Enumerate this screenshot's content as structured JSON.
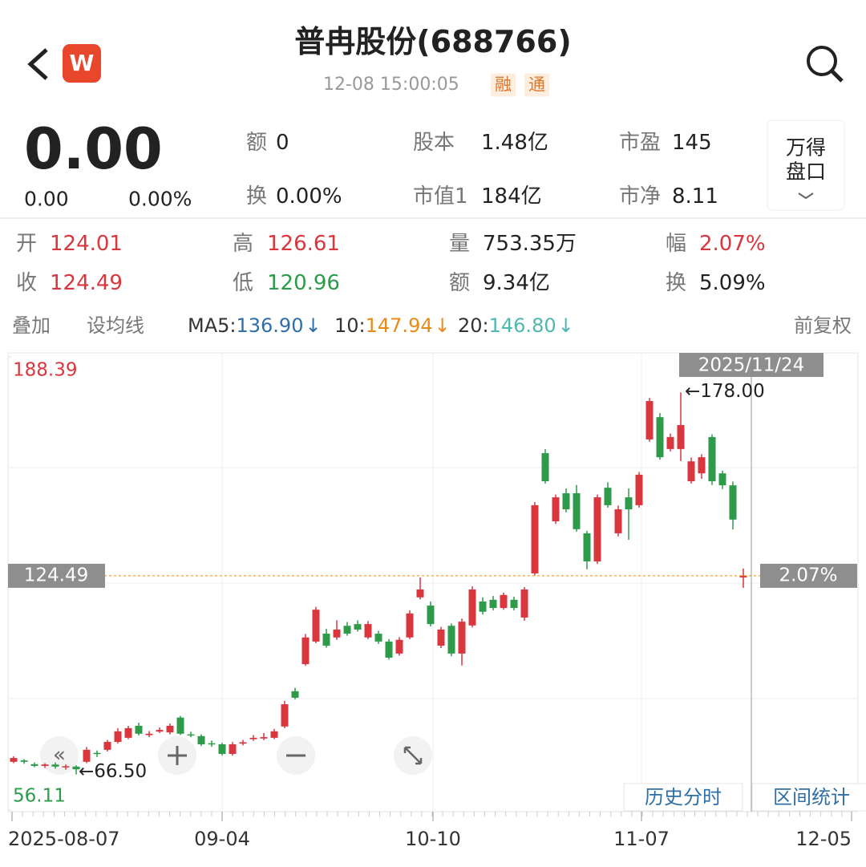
{
  "header": {
    "title": "普冉股份(688766)",
    "time": "12-08 15:00:05",
    "tags": [
      "融",
      "通"
    ]
  },
  "quote": {
    "price": "0.00",
    "change": "0.00",
    "percent": "0.00%"
  },
  "stats": [
    {
      "label": "额",
      "value": "0"
    },
    {
      "label": "股本",
      "value": "1.48亿"
    },
    {
      "label": "市盈",
      "value": "145"
    },
    {
      "label": "换",
      "value": "0.00%"
    },
    {
      "label": "市值1",
      "value": "184亿"
    },
    {
      "label": "市净",
      "value": "8.11"
    }
  ],
  "wind_button": [
    "万得",
    "盘口"
  ],
  "day_stats": [
    {
      "label": "开",
      "value": "124.01"
    },
    {
      "label": "高",
      "value": "126.61"
    },
    {
      "label": "量",
      "value": "753.35万"
    },
    {
      "label": "幅",
      "value": "2.07%"
    },
    {
      "label": "收",
      "value": "124.49"
    },
    {
      "label": "低",
      "value": "120.96"
    },
    {
      "label": "额",
      "value": "9.34亿"
    },
    {
      "label": "换",
      "value": "5.09%"
    }
  ],
  "toolbar": {
    "overlay": "叠加",
    "set_ma": "设均线",
    "ma": [
      {
        "label": "MA5:",
        "value": "136.90",
        "arrow": "↓"
      },
      {
        "label": "10:",
        "value": "147.94",
        "arrow": "↓"
      },
      {
        "label": "20:",
        "value": "146.80",
        "arrow": "↓"
      }
    ],
    "adjust": "前复权"
  },
  "chart_data": {
    "type": "candlestick",
    "ylim": [
      56.11,
      188.39
    ],
    "yticks": [
      188.39,
      56.11
    ],
    "up_color": "#d9363e",
    "down_color": "#2e9b4a",
    "crosshair_date": "2025/11/24",
    "high_label": "←178.00",
    "low_label": "←66.50",
    "last_price": {
      "value": 124.49,
      "label": "124.49"
    },
    "last_percent": "2.07%",
    "xtick_labels": [
      "2025-08-07",
      "09-04",
      "10-10",
      "11-07",
      "12-05"
    ],
    "buttons": [
      "历史分时",
      "区间统计"
    ],
    "open": [
      70.2,
      70.6,
      69.5,
      69.0,
      69.4,
      68.6,
      68.8,
      70.2,
      72.8,
      73.7,
      76.0,
      77.2,
      80.7,
      78.0,
      79.0,
      78.8,
      83.1,
      78.2,
      77.7,
      75.6,
      75.3,
      72.5,
      75.5,
      76.8,
      77.0,
      77.2,
      80.5,
      90.8,
      98.7,
      105.3,
      107.6,
      106.5,
      109.9,
      110.4,
      106.5,
      107.6,
      105.3,
      101.8,
      106.5,
      118.2,
      115.8,
      104.1,
      109.9,
      101.8,
      110.0,
      117.0,
      117.5,
      115.1,
      117.5,
      112.3,
      125.2,
      160.3,
      140.4,
      148.6,
      148.6,
      136.9,
      128.7,
      150.2,
      136.9,
      147.4,
      145.1,
      164.3,
      170.8,
      161.5,
      161.5,
      152.1,
      154.4,
      165.0,
      154.4,
      150.9,
      124.01
    ],
    "high": [
      71.8,
      71.0,
      70.0,
      69.8,
      70.0,
      69.4,
      69.2,
      74.5,
      73.5,
      76.6,
      80.0,
      80.7,
      81.6,
      79.2,
      80.2,
      81.4,
      83.6,
      79.0,
      78.2,
      76.4,
      75.8,
      76.0,
      76.6,
      78.0,
      78.6,
      79.8,
      88.0,
      91.8,
      107.5,
      115.4,
      109.0,
      111.5,
      111.0,
      111.5,
      111.3,
      108.4,
      106.0,
      106.6,
      114.4,
      124.0,
      117.0,
      109.6,
      110.6,
      112.0,
      121.4,
      118.2,
      118.6,
      119.6,
      118.4,
      121.2,
      146.0,
      161.5,
      148.2,
      150.0,
      151.0,
      137.6,
      148.2,
      151.8,
      145.0,
      150.0,
      154.8,
      176.4,
      172.0,
      166.0,
      178.0,
      159.0,
      160.0,
      165.8,
      155.2,
      152.0,
      126.61
    ],
    "low": [
      69.8,
      69.6,
      68.6,
      68.4,
      68.2,
      67.9,
      66.5,
      69.8,
      71.6,
      73.2,
      75.5,
      76.8,
      77.9,
      77.4,
      78.6,
      78.2,
      78.0,
      77.4,
      74.8,
      74.6,
      72.0,
      72.0,
      75.0,
      76.3,
      76.5,
      76.8,
      80.0,
      88.4,
      98.2,
      104.8,
      103.5,
      105.8,
      107.0,
      108.2,
      106.0,
      104.6,
      100.0,
      101.2,
      106.0,
      117.6,
      109.7,
      103.4,
      101.0,
      98.3,
      109.4,
      113.2,
      114.4,
      114.6,
      114.4,
      111.4,
      124.6,
      151.4,
      139.6,
      143.0,
      137.4,
      126.4,
      128.0,
      144.4,
      136.0,
      135.0,
      144.4,
      163.6,
      158.4,
      160.8,
      158.0,
      151.4,
      152.8,
      151.0,
      149.8,
      138.0,
      120.96
    ],
    "close": [
      71.3,
      70.2,
      69.0,
      69.4,
      68.8,
      68.9,
      68.0,
      73.7,
      72.5,
      76.0,
      79.1,
      80.0,
      78.4,
      78.4,
      79.5,
      80.7,
      78.4,
      78.0,
      75.3,
      75.3,
      72.5,
      75.3,
      75.9,
      77.2,
      77.4,
      79.1,
      87.0,
      88.9,
      106.5,
      114.6,
      104.1,
      108.8,
      107.6,
      108.8,
      110.4,
      105.3,
      100.6,
      105.8,
      113.5,
      120.5,
      110.4,
      108.8,
      101.8,
      111.1,
      120.5,
      114.0,
      115.1,
      118.9,
      115.1,
      120.5,
      145.1,
      152.1,
      147.4,
      143.9,
      138.1,
      128.7,
      147.4,
      145.1,
      143.9,
      143.9,
      154.0,
      175.5,
      159.1,
      165.0,
      168.5,
      157.9,
      159.1,
      152.1,
      150.9,
      140.9,
      124.49
    ]
  }
}
